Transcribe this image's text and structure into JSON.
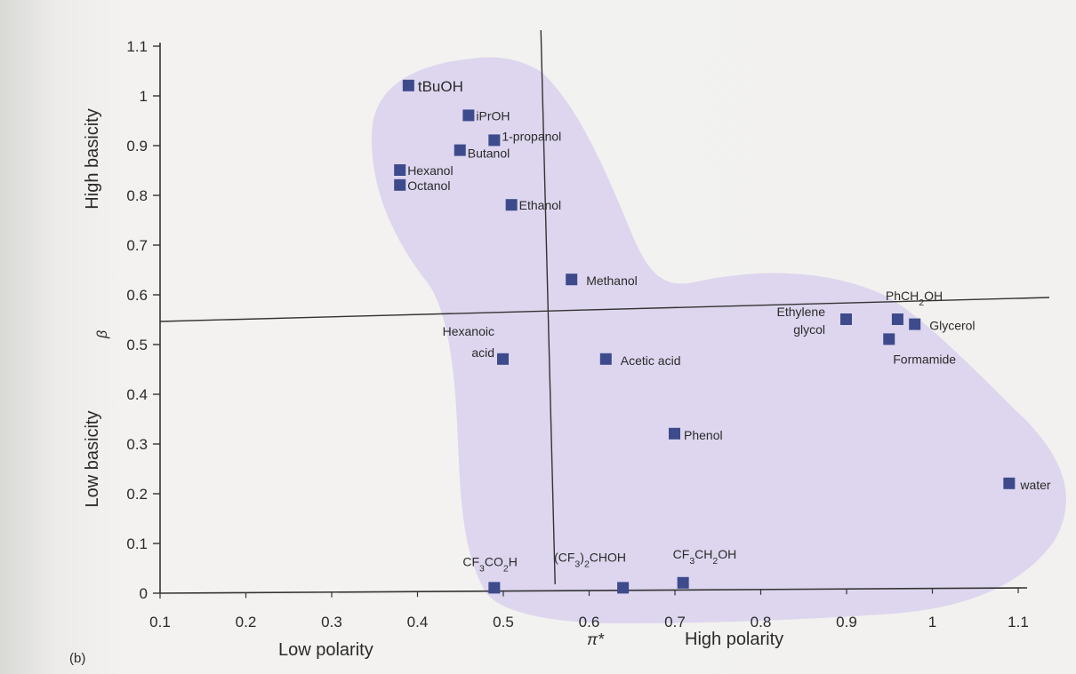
{
  "panel_label": "(b)",
  "chart_data": {
    "type": "scatter",
    "title": "",
    "xlabel": "π*",
    "ylabel": "β",
    "xlim": [
      0.1,
      1.1
    ],
    "ylim": [
      0,
      1.1
    ],
    "x_ticks": [
      "0.1",
      "0.2",
      "0.3",
      "0.4",
      "0.5",
      "0.6",
      "0.7",
      "0.8",
      "0.9",
      "1",
      "1.1"
    ],
    "y_ticks": [
      "0",
      "0.1",
      "0.2",
      "0.3",
      "0.4",
      "0.5",
      "0.6",
      "0.7",
      "0.8",
      "0.9",
      "1",
      "1.1"
    ],
    "x_axis_annotations": {
      "low": "Low polarity",
      "high": "High polarity"
    },
    "y_axis_annotations": {
      "low": "Low basicity",
      "high": "High basicity"
    },
    "grid": false,
    "quadrant_lines": {
      "x": 0.55,
      "y": 0.55
    },
    "region_color": "#ddd6ee",
    "marker_color": "#3d4a8c",
    "points": [
      {
        "label": "tBuOH",
        "x": 0.39,
        "y": 1.02
      },
      {
        "label": "iPrOH",
        "x": 0.46,
        "y": 0.96
      },
      {
        "label": "1-propanol",
        "x": 0.49,
        "y": 0.91
      },
      {
        "label": "Butanol",
        "x": 0.45,
        "y": 0.89
      },
      {
        "label": "Hexanol",
        "x": 0.38,
        "y": 0.85
      },
      {
        "label": "Octanol",
        "x": 0.38,
        "y": 0.82
      },
      {
        "label": "Ethanol",
        "x": 0.51,
        "y": 0.78
      },
      {
        "label": "Methanol",
        "x": 0.58,
        "y": 0.63
      },
      {
        "label": "Ethylene glycol",
        "x": 0.9,
        "y": 0.55
      },
      {
        "label": "PhCH2OH",
        "x": 0.96,
        "y": 0.55
      },
      {
        "label": "Glycerol",
        "x": 0.98,
        "y": 0.54
      },
      {
        "label": "Formamide",
        "x": 0.95,
        "y": 0.51
      },
      {
        "label": "Hexanoic acid",
        "x": 0.5,
        "y": 0.47
      },
      {
        "label": "Acetic acid",
        "x": 0.62,
        "y": 0.47
      },
      {
        "label": "Phenol",
        "x": 0.7,
        "y": 0.32
      },
      {
        "label": "water",
        "x": 1.09,
        "y": 0.22
      },
      {
        "label": "CF3CO2H",
        "x": 0.49,
        "y": 0.01
      },
      {
        "label": "(CF3)2CHOH",
        "x": 0.64,
        "y": 0.01
      },
      {
        "label": "CF3CH2OH",
        "x": 0.71,
        "y": 0.02
      }
    ]
  }
}
